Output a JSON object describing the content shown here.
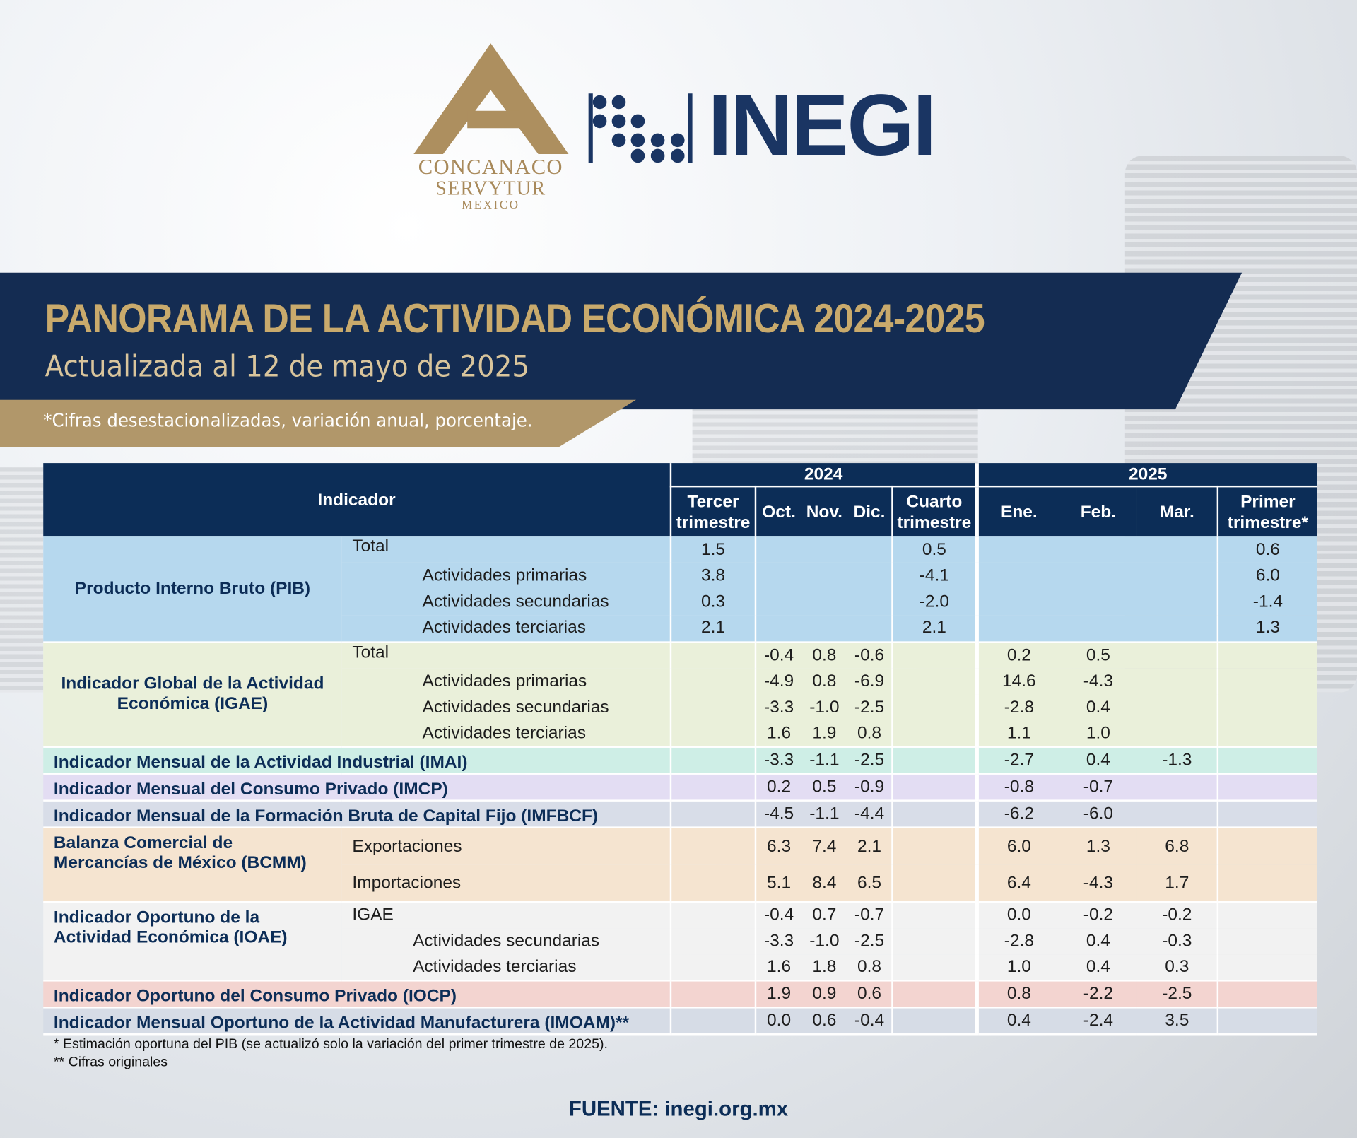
{
  "header": {
    "concanaco": [
      "CONCANACO",
      "SERVYTUR",
      "MEXICO"
    ],
    "inegi": "INEGI"
  },
  "banner": {
    "title": "PANORAMA DE LA ACTIVIDAD ECONÓMICA 2024-2025",
    "subtitle": "Actualizada al 12 de mayo de 2025",
    "note": "*Cifras desestacionalizadas, variación anual, porcentaje."
  },
  "table": {
    "indicator_header": "Indicador",
    "years": [
      {
        "label": "2024",
        "columns": [
          "Tercer trimestre",
          "Oct.",
          "Nov.",
          "Dic.",
          "Cuarto trimestre"
        ]
      },
      {
        "label": "2025",
        "columns": [
          "Ene.",
          "Feb.",
          "Mar.",
          "Primer trimestre*"
        ]
      }
    ],
    "groups": [
      {
        "name": "Producto Interno Bruto (PIB)",
        "color": "#b6d8ee",
        "rows": [
          {
            "label": "Total",
            "values": [
              "1.5",
              null,
              null,
              null,
              "0.5",
              null,
              null,
              null,
              "0.6"
            ]
          },
          {
            "label": "Actividades primarias",
            "values": [
              "3.8",
              null,
              null,
              null,
              "-4.1",
              null,
              null,
              null,
              "6.0"
            ]
          },
          {
            "label": "Actividades secundarias",
            "values": [
              "0.3",
              null,
              null,
              null,
              "-2.0",
              null,
              null,
              null,
              "-1.4"
            ]
          },
          {
            "label": "Actividades terciarias",
            "values": [
              "2.1",
              null,
              null,
              null,
              "2.1",
              null,
              null,
              null,
              "1.3"
            ]
          }
        ]
      },
      {
        "name": "Indicador Global de la Actividad Económica (IGAE)",
        "color": "#eaf0da",
        "rows": [
          {
            "label": "Total",
            "values": [
              null,
              "-0.4",
              "0.8",
              "-0.6",
              null,
              "0.2",
              "0.5",
              null,
              null
            ]
          },
          {
            "label": "Actividades primarias",
            "values": [
              null,
              "-4.9",
              "0.8",
              "-6.9",
              null,
              "14.6",
              "-4.3",
              null,
              null
            ]
          },
          {
            "label": "Actividades secundarias",
            "values": [
              null,
              "-3.3",
              "-1.0",
              "-2.5",
              null,
              "-2.8",
              "0.4",
              null,
              null
            ]
          },
          {
            "label": "Actividades terciarias",
            "values": [
              null,
              "1.6",
              "1.9",
              "0.8",
              null,
              "1.1",
              "1.0",
              null,
              null
            ]
          }
        ]
      },
      {
        "name": "Indicador Mensual de la Actividad Industrial (IMAI)",
        "color": "#ceeee6",
        "rows": [
          {
            "values": [
              null,
              "-3.3",
              "-1.1",
              "-2.5",
              null,
              "-2.7",
              "0.4",
              "-1.3",
              null
            ]
          }
        ]
      },
      {
        "name": "Indicador Mensual del Consumo Privado (IMCP)",
        "color": "#e3ddf3",
        "rows": [
          {
            "values": [
              null,
              "0.2",
              "0.5",
              "-0.9",
              null,
              "-0.8",
              "-0.7",
              null,
              null
            ]
          }
        ]
      },
      {
        "name": "Indicador Mensual de la Formación Bruta de Capital Fijo (IMFBCF)",
        "color": "#d8dde8",
        "rows": [
          {
            "values": [
              null,
              "-4.5",
              "-1.1",
              "-4.4",
              null,
              "-6.2",
              "-6.0",
              null,
              null
            ]
          }
        ]
      },
      {
        "name": "Balanza Comercial de Mercancías de México (BCMM)",
        "color": "#f5e4d0",
        "rows": [
          {
            "label": "Exportaciones",
            "values": [
              null,
              "6.3",
              "7.4",
              "2.1",
              null,
              "6.0",
              "1.3",
              "6.8",
              null
            ]
          },
          {
            "label": "Importaciones",
            "values": [
              null,
              "5.1",
              "8.4",
              "6.5",
              null,
              "6.4",
              "-4.3",
              "1.7",
              null
            ]
          }
        ]
      },
      {
        "name": "Indicador Oportuno de la Actividad Económica (IOAE)",
        "color": "#f2f2f2",
        "rows": [
          {
            "label": "IGAE",
            "values": [
              null,
              "-0.4",
              "0.7",
              "-0.7",
              null,
              "0.0",
              "-0.2",
              "-0.2",
              null
            ]
          },
          {
            "label": "Actividades secundarias",
            "values": [
              null,
              "-3.3",
              "-1.0",
              "-2.5",
              null,
              "-2.8",
              "0.4",
              "-0.3",
              null
            ]
          },
          {
            "label": "Actividades terciarias",
            "values": [
              null,
              "1.6",
              "1.8",
              "0.8",
              null,
              "1.0",
              "0.4",
              "0.3",
              null
            ]
          }
        ]
      },
      {
        "name": "Indicador Oportuno del Consumo Privado (IOCP)",
        "color": "#f3d4d0",
        "rows": [
          {
            "values": [
              null,
              "1.9",
              "0.9",
              "0.6",
              null,
              "0.8",
              "-2.2",
              "-2.5",
              null
            ]
          }
        ]
      },
      {
        "name": "Indicador Mensual Oportuno de la Actividad Manufacturera (IMOAM)**",
        "color": "#d6dce6",
        "rows": [
          {
            "values": [
              null,
              "0.0",
              "0.6",
              "-0.4",
              null,
              "0.4",
              "-2.4",
              "3.5",
              null
            ]
          }
        ]
      }
    ],
    "footnotes": [
      "* Estimación oportuna del PIB (se actualizó solo la variación del primer trimestre de 2025).",
      "** Cifras originales"
    ]
  },
  "source": "FUENTE: inegi.org.mx"
}
